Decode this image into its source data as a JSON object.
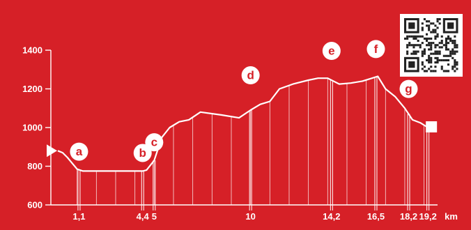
{
  "colors": {
    "background": "#d62027",
    "foreground": "#ffffff"
  },
  "chart_data": {
    "type": "area",
    "title": "",
    "xlabel": "",
    "ylabel": "",
    "x_unit": "km",
    "xlim": [
      0,
      19.7
    ],
    "ylim": [
      600,
      1400
    ],
    "y_ticks": [
      600,
      800,
      1000,
      1200,
      1400
    ],
    "x_ticks": [
      {
        "value": 1.1,
        "label": "1,1"
      },
      {
        "value": 4.4,
        "label": "4,4"
      },
      {
        "value": 5,
        "label": "5"
      },
      {
        "value": 10,
        "label": "10"
      },
      {
        "value": 14.2,
        "label": "14,2"
      },
      {
        "value": 16.5,
        "label": "16,5"
      },
      {
        "value": 18.2,
        "label": "18,2"
      },
      {
        "value": 19.2,
        "label": "19,2"
      }
    ],
    "x_unit_label": "km",
    "gridlines": "vertical",
    "series": [
      {
        "x": [
          0,
          0.25,
          0.5,
          0.75,
          1.0,
          1.3,
          2,
          3,
          4,
          4.4,
          4.6,
          5.0,
          5.4,
          5.8,
          6.3,
          6.8,
          7.4,
          8.5,
          9.4,
          10.0,
          10.5,
          11.0,
          11.5,
          12.2,
          13.0,
          13.5,
          14.0,
          14.6,
          15.2,
          15.8,
          16.3,
          16.6,
          17.0,
          17.5,
          18.0,
          18.4,
          18.8,
          19.2
        ],
        "y": [
          880,
          870,
          845,
          815,
          785,
          775,
          775,
          775,
          775,
          775,
          780,
          830,
          950,
          1000,
          1030,
          1040,
          1080,
          1065,
          1050,
          1090,
          1120,
          1135,
          1200,
          1225,
          1245,
          1255,
          1255,
          1225,
          1230,
          1240,
          1255,
          1265,
          1200,
          1160,
          1100,
          1040,
          1025,
          1000
        ]
      }
    ],
    "waypoints": [
      {
        "letter": "a",
        "x": 1.1
      },
      {
        "letter": "b",
        "x": 4.4
      },
      {
        "letter": "c",
        "x": 5.0
      },
      {
        "letter": "d",
        "x": 10.0
      },
      {
        "letter": "e",
        "x": 14.2
      },
      {
        "letter": "f",
        "x": 16.5
      },
      {
        "letter": "g",
        "x": 18.2
      }
    ]
  }
}
